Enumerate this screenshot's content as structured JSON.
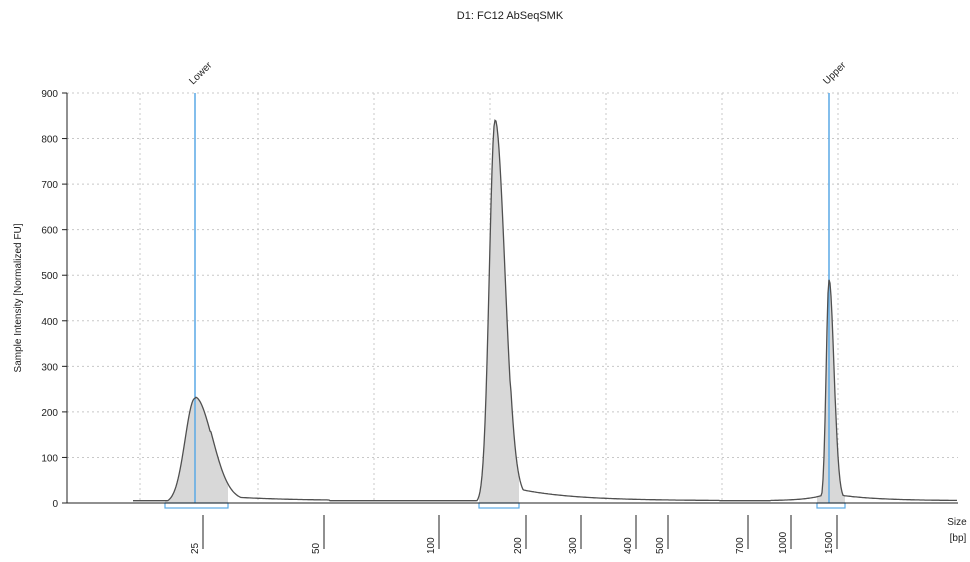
{
  "chart_data": {
    "type": "area",
    "title": "D1: FC12 AbSeqSMK",
    "ylabel": "Sample Intensity [Normalized FU]",
    "xlabel_lines": [
      "Size",
      "[bp]"
    ],
    "ylim": [
      0,
      900
    ],
    "y_ticks": [
      0,
      100,
      200,
      300,
      400,
      500,
      600,
      700,
      800,
      900
    ],
    "x_ticks": [
      "25",
      "50",
      "100",
      "200",
      "300",
      "400",
      "500",
      "700",
      "1000",
      "1500"
    ],
    "grid": "dotted",
    "markers": [
      {
        "label": "Lower",
        "size": "25"
      },
      {
        "label": "Upper",
        "size": "1500"
      }
    ],
    "peaks": [
      {
        "size": "25",
        "intensity": 230
      },
      {
        "size": "~150",
        "intensity": 840
      },
      {
        "size": "1500",
        "intensity": 490
      }
    ],
    "colors": {
      "trace": "#505050",
      "fill": "#d8d8d8",
      "marker": "#5aa9e6",
      "grid": "#c8c8c8",
      "axis": "#202020",
      "text": "#202020"
    }
  }
}
